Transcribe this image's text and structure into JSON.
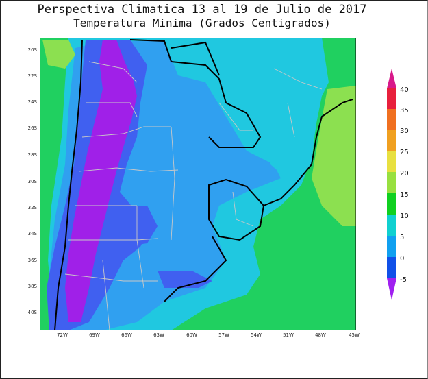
{
  "title_line1": "Perspectiva Climatica 13 al 19 de Julio de 2017",
  "title_line2": "Temperatura Minima (Grados Centigrados)",
  "lat_labels": [
    "20S",
    "22S",
    "24S",
    "26S",
    "28S",
    "30S",
    "32S",
    "34S",
    "36S",
    "38S",
    "40S"
  ],
  "lon_labels": [
    "72W",
    "69W",
    "66W",
    "63W",
    "60W",
    "57W",
    "54W",
    "51W",
    "48W",
    "45W"
  ],
  "colorbar": {
    "ticks": [
      "40",
      "35",
      "30",
      "25",
      "20",
      "15",
      "10",
      "5",
      "0",
      "-5"
    ],
    "colors": [
      "#d8198a",
      "#e8203c",
      "#f07020",
      "#f0a020",
      "#e8e040",
      "#98e040",
      "#10d020",
      "#10d0d0",
      "#10a0f0",
      "#1050e8",
      "#a020f0"
    ]
  },
  "legend_colors": {
    "below_minus5": "#a020e8",
    "minus5_0": "#4060f0",
    "0_5": "#30a0f0",
    "5_10": "#20c8e0",
    "10_15": "#20d060",
    "15_20": "#8ce050",
    "20_25": "#f0e040"
  }
}
